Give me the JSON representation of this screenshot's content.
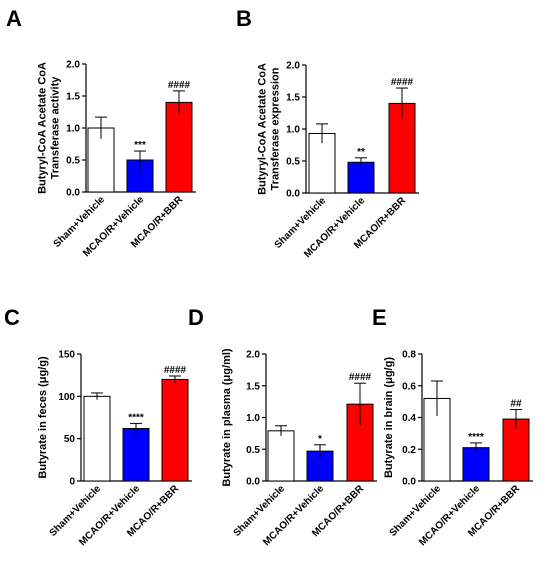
{
  "colors": {
    "sham": "#ffffff",
    "vehicle": "#0000ff",
    "bbr": "#ff0000",
    "axis": "#000000"
  },
  "chart_data": [
    {
      "panel": "A",
      "type": "bar",
      "ylabel": "Butyryl-CoA Acetate CoA Transferase activity",
      "ylabel_lines": [
        "Butyryl-CoA Acetate CoA",
        "Transferase activity"
      ],
      "ylim": [
        0,
        2.0
      ],
      "yticks": [
        "0.0",
        "0.5",
        "1.0",
        "1.5",
        "2.0"
      ],
      "categories": [
        "Sham+Vehicle",
        "MCAO/R+Vehicle",
        "MCAO/R+BBR"
      ],
      "values": [
        1.0,
        0.5,
        1.4
      ],
      "errors": [
        0.17,
        0.14,
        0.18
      ],
      "significance": [
        "",
        "***",
        "####"
      ],
      "bar_colors": [
        "#ffffff",
        "#0000ff",
        "#ff0000"
      ]
    },
    {
      "panel": "B",
      "type": "bar",
      "ylabel": "Butyryl-CoA Acetate CoA Transferase expression",
      "ylabel_lines": [
        "Butyryl-CoA Acetate CoA",
        "Transferase expression"
      ],
      "ylim": [
        0,
        2.0
      ],
      "yticks": [
        "0.0",
        "0.5",
        "1.0",
        "1.5",
        "2.0"
      ],
      "categories": [
        "Sham+Vehicle",
        "MCAO/R+Vehicle",
        "MCAO/R+BBR"
      ],
      "values": [
        0.93,
        0.48,
        1.4
      ],
      "errors": [
        0.15,
        0.07,
        0.24
      ],
      "significance": [
        "",
        "**",
        "####"
      ],
      "bar_colors": [
        "#ffffff",
        "#0000ff",
        "#ff0000"
      ]
    },
    {
      "panel": "C",
      "type": "bar",
      "ylabel": "Butyrate in feces (μg/g)",
      "ylabel_lines": [
        "Butyrate in feces (μg/g)"
      ],
      "ylim": [
        0,
        150
      ],
      "yticks": [
        "0",
        "50",
        "100",
        "150"
      ],
      "categories": [
        "Sham+Vehicle",
        "MCAO/R+Vehicle",
        "MCAO/R+BBR"
      ],
      "values": [
        100,
        62,
        120
      ],
      "errors": [
        4,
        6,
        4
      ],
      "significance": [
        "",
        "****",
        "####"
      ],
      "bar_colors": [
        "#ffffff",
        "#0000ff",
        "#ff0000"
      ]
    },
    {
      "panel": "D",
      "type": "bar",
      "ylabel": "Butyrate in plasma (μg/ml)",
      "ylabel_lines": [
        "Butyrate in plasma (μg/ml)"
      ],
      "ylim": [
        0,
        2.0
      ],
      "yticks": [
        "0.0",
        "0.5",
        "1.0",
        "1.5",
        "2.0"
      ],
      "categories": [
        "Sham+Vehicle",
        "MCAO/R+Vehicle",
        "MCAO/R+BBR"
      ],
      "values": [
        0.79,
        0.47,
        1.21
      ],
      "errors": [
        0.08,
        0.1,
        0.33
      ],
      "significance": [
        "",
        "*",
        "####"
      ],
      "bar_colors": [
        "#ffffff",
        "#0000ff",
        "#ff0000"
      ]
    },
    {
      "panel": "E",
      "type": "bar",
      "ylabel": "Butyrate in brain (μg/g)",
      "ylabel_lines": [
        "Butyrate in brain (μg/g)"
      ],
      "ylim": [
        0,
        0.8
      ],
      "yticks": [
        "0.0",
        "0.2",
        "0.4",
        "0.6",
        "0.8"
      ],
      "categories": [
        "Sham+Vehicle",
        "MCAO/R+Vehicle",
        "MCAO/R+BBR"
      ],
      "values": [
        0.52,
        0.21,
        0.39
      ],
      "errors": [
        0.11,
        0.03,
        0.06
      ],
      "significance": [
        "",
        "****",
        "##"
      ],
      "bar_colors": [
        "#ffffff",
        "#0000ff",
        "#ff0000"
      ]
    }
  ]
}
